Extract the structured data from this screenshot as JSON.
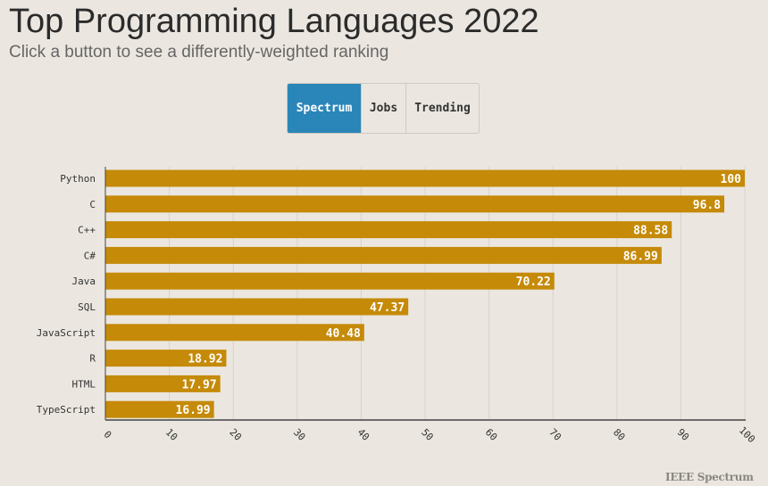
{
  "header": {
    "title": "Top Programming Languages 2022",
    "subtitle": "Click a button to see a differently-weighted ranking"
  },
  "buttons": [
    {
      "label": "Spectrum",
      "active": true
    },
    {
      "label": "Jobs",
      "active": false
    },
    {
      "label": "Trending",
      "active": false
    }
  ],
  "colors": {
    "bar": "#c58a08",
    "active_button": "#2a86b9",
    "background": "#ebe7e0",
    "grid": "#d8d3cb",
    "axis": "#444444"
  },
  "chart_data": {
    "type": "bar",
    "orientation": "horizontal",
    "categories": [
      "Python",
      "C",
      "C++",
      "C#",
      "Java",
      "SQL",
      "JavaScript",
      "R",
      "HTML",
      "TypeScript"
    ],
    "values": [
      100,
      96.8,
      88.58,
      86.99,
      70.22,
      47.37,
      40.48,
      18.92,
      17.97,
      16.99
    ],
    "value_labels": [
      "100",
      "96.8",
      "88.58",
      "86.99",
      "70.22",
      "47.37",
      "40.48",
      "18.92",
      "17.97",
      "16.99"
    ],
    "xticks": [
      "0",
      "10",
      "20",
      "30",
      "40",
      "50",
      "60",
      "70",
      "80",
      "90",
      "100"
    ],
    "xlim": [
      0,
      100
    ],
    "grid": true
  },
  "footer": {
    "brand": "IEEE Spectrum"
  }
}
